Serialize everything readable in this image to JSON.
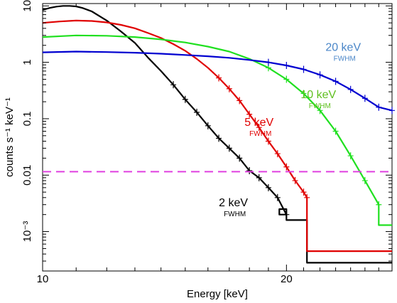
{
  "chart_data": {
    "type": "line",
    "xlabel": "Energy [keV]",
    "ylabel": "counts s⁻¹ keV⁻¹",
    "xscale": "log",
    "yscale": "log",
    "xlim": [
      10,
      27
    ],
    "ylim": [
      0.0002,
      11
    ],
    "xticks": [
      {
        "value": 10,
        "label": "10"
      },
      {
        "value": 20,
        "label": "20"
      }
    ],
    "yticks": [
      {
        "value": 10,
        "label": "10"
      },
      {
        "value": 1,
        "label": "1"
      },
      {
        "value": 0.1,
        "label": "0.1"
      },
      {
        "value": 0.01,
        "label": "0.01"
      },
      {
        "value": 0.001,
        "label": "10⁻³"
      }
    ],
    "grid": false,
    "reference_line": {
      "y": 0.0115,
      "color": "#e040e0",
      "style": "dashed"
    },
    "series": [
      {
        "color": "#000000",
        "x": [
          10.0,
          10.2,
          10.4,
          10.6,
          10.8,
          11.0,
          11.2,
          11.5,
          12.0,
          12.5,
          13.0,
          13.5,
          14.0,
          14.5,
          15.0,
          15.5,
          16.0,
          16.5,
          17.0,
          17.5,
          18.0,
          18.5,
          19.0,
          19.5,
          20.0
        ],
        "y": [
          8.5,
          9.2,
          9.7,
          10.0,
          10.0,
          9.8,
          9.2,
          8.0,
          5.5,
          3.5,
          2.2,
          1.2,
          0.7,
          0.4,
          0.22,
          0.13,
          0.075,
          0.045,
          0.03,
          0.02,
          0.012,
          0.009,
          0.006,
          0.004,
          0.002
        ],
        "step_tail": [
          {
            "x": [
              19.6,
              20.0
            ],
            "y": 0.0025
          },
          {
            "x": [
              20.0,
              21.2
            ],
            "y": 0.0016
          },
          {
            "x": [
              21.2,
              27.0
            ],
            "y": 0.00028
          }
        ]
      },
      {
        "color": "#e00000",
        "x": [
          10.0,
          10.5,
          11.0,
          11.5,
          12.0,
          12.5,
          13.0,
          13.5,
          14.0,
          14.5,
          15.0,
          15.5,
          16.0,
          16.5,
          17.0,
          17.5,
          18.0,
          18.5,
          19.0,
          19.5,
          20.0,
          20.5,
          21.0,
          21.2
        ],
        "y": [
          5.0,
          5.3,
          5.5,
          5.4,
          5.1,
          4.6,
          4.0,
          3.3,
          2.7,
          2.1,
          1.6,
          1.15,
          0.8,
          0.53,
          0.34,
          0.21,
          0.12,
          0.07,
          0.04,
          0.024,
          0.014,
          0.008,
          0.005,
          0.004
        ],
        "step_tail": [
          {
            "x": [
              21.2,
              27.0
            ],
            "y": 0.00045
          }
        ]
      },
      {
        "color": "#20e020",
        "x": [
          10.0,
          11.0,
          12.0,
          13.0,
          14.0,
          15.0,
          16.0,
          17.0,
          18.0,
          19.0,
          20.0,
          21.0,
          22.0,
          23.0,
          24.0,
          25.0,
          26.0
        ],
        "y": [
          2.8,
          3.0,
          2.95,
          2.8,
          2.55,
          2.25,
          1.9,
          1.55,
          1.15,
          0.8,
          0.5,
          0.28,
          0.14,
          0.06,
          0.022,
          0.008,
          0.003
        ],
        "step_tail": [
          {
            "x": [
              26.0,
              27.0
            ],
            "y": 0.0013
          }
        ]
      },
      {
        "color": "#0000d0",
        "x": [
          10.0,
          11.0,
          12.0,
          13.0,
          14.0,
          15.0,
          16.0,
          17.0,
          18.0,
          19.0,
          20.0,
          21.0,
          22.0,
          23.0,
          24.0,
          25.0,
          26.0,
          27.0
        ],
        "y": [
          1.5,
          1.55,
          1.52,
          1.48,
          1.42,
          1.35,
          1.28,
          1.2,
          1.1,
          1.0,
          0.88,
          0.75,
          0.6,
          0.46,
          0.33,
          0.23,
          0.16,
          0.14
        ]
      }
    ],
    "annotations": [
      {
        "text": "20 keV",
        "sub": "FWHM",
        "color": "#4a86c8",
        "x": 23.5,
        "y": 1.6
      },
      {
        "text": "10 keV",
        "sub": "FWHM",
        "color": "#60c020",
        "x": 21.9,
        "y": 0.23
      },
      {
        "text": "5 keV",
        "sub": "FWHM",
        "color": "#e00000",
        "x": 18.5,
        "y": 0.075
      },
      {
        "text": "2 keV",
        "sub": "FWHM",
        "color": "#000000",
        "x": 17.2,
        "y": 0.0028
      }
    ]
  }
}
